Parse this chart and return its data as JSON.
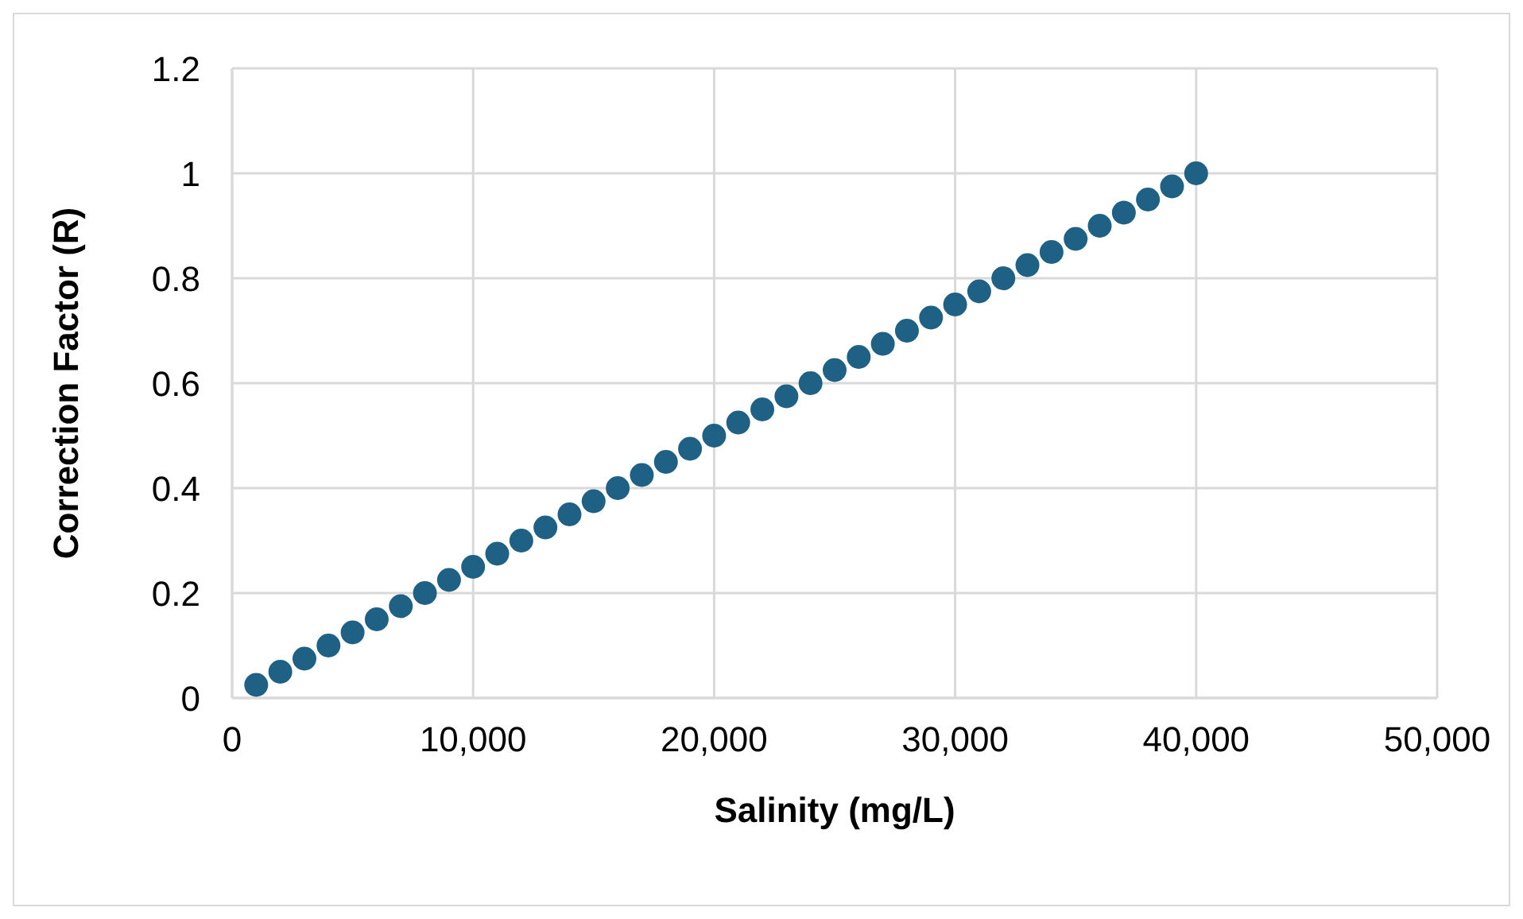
{
  "chart_data": {
    "type": "scatter",
    "xlabel": "Salinity (mg/L)",
    "ylabel": "Correction Factor (R)",
    "x": [
      1000,
      2000,
      3000,
      4000,
      5000,
      6000,
      7000,
      8000,
      9000,
      10000,
      11000,
      12000,
      13000,
      14000,
      15000,
      16000,
      17000,
      18000,
      19000,
      20000,
      21000,
      22000,
      23000,
      24000,
      25000,
      26000,
      27000,
      28000,
      29000,
      30000,
      31000,
      32000,
      33000,
      34000,
      35000,
      36000,
      37000,
      38000,
      39000,
      40000
    ],
    "series": [
      {
        "color": "#1f6184",
        "values": [
          0.025,
          0.05,
          0.075,
          0.1,
          0.125,
          0.15,
          0.175,
          0.2,
          0.225,
          0.25,
          0.275,
          0.3,
          0.325,
          0.35,
          0.375,
          0.4,
          0.425,
          0.45,
          0.475,
          0.5,
          0.525,
          0.55,
          0.575,
          0.6,
          0.625,
          0.65,
          0.675,
          0.7,
          0.725,
          0.75,
          0.775,
          0.8,
          0.825,
          0.85,
          0.875,
          0.9,
          0.925,
          0.95,
          0.975,
          1
        ]
      }
    ],
    "xlim": [
      0,
      50000
    ],
    "xticks": [
      {
        "value": 0,
        "label": "0"
      },
      {
        "value": 10000,
        "label": "10,000"
      },
      {
        "value": 20000,
        "label": "20,000"
      },
      {
        "value": 30000,
        "label": "30,000"
      },
      {
        "value": 40000,
        "label": "40,000"
      },
      {
        "value": 50000,
        "label": "50,000"
      }
    ],
    "ylim": [
      0,
      1.2
    ],
    "yticks": [
      0,
      0.2,
      0.4,
      0.6,
      0.8,
      1,
      1.2
    ],
    "grid": true,
    "marker": "circle"
  }
}
